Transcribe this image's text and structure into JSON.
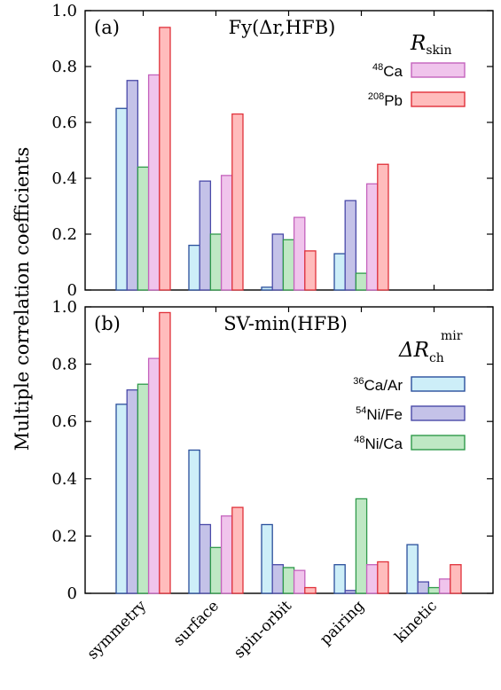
{
  "figure": {
    "ylabel": "Multiple correlation coefficients",
    "categories": [
      "symmetry",
      "surface",
      "spin-orbit",
      "pairing",
      "kinetic"
    ]
  },
  "colors": {
    "Ca48_fill": "#f0c4ec",
    "Ca48_stroke": "#c463bd",
    "Pb208_fill": "#ffbcbc",
    "Pb208_stroke": "#e0313a",
    "CaAr_fill": "#cdeef8",
    "CaAr_stroke": "#2a4f9c",
    "NiFe_fill": "#c4c2e8",
    "NiFe_stroke": "#4a4aa8",
    "NiCa_fill": "#bfe8c4",
    "NiCa_stroke": "#2f9a4a"
  },
  "chart_data": [
    {
      "type": "bar",
      "panel": "(a)",
      "title": "Fy(Δr,HFB)",
      "legend_title": {
        "symbol": "R",
        "subscript": "skin"
      },
      "categories": [
        "symmetry",
        "surface",
        "spin-orbit",
        "pairing",
        "kinetic"
      ],
      "ylim": [
        0,
        1.0
      ],
      "yticks": [
        "0",
        "0.2",
        "0.4",
        "0.6",
        "0.8",
        "1.0"
      ],
      "series": [
        {
          "name": "ΔR_ch^mir (36Ca/Ar)",
          "values": [
            0.65,
            0.16,
            0.01,
            0.13,
            null
          ],
          "fill": "#cdeef8",
          "stroke": "#2a4f9c"
        },
        {
          "name": "ΔR_ch^mir (54Ni/Fe)",
          "values": [
            0.75,
            0.39,
            0.2,
            0.32,
            null
          ],
          "fill": "#c4c2e8",
          "stroke": "#4a4aa8"
        },
        {
          "name": "ΔR_ch^mir (48Ni/Ca)",
          "values": [
            0.44,
            0.2,
            0.18,
            0.06,
            null
          ],
          "fill": "#bfe8c4",
          "stroke": "#2f9a4a"
        },
        {
          "name": "48Ca",
          "sup": "48",
          "base": "Ca",
          "values": [
            0.77,
            0.41,
            0.26,
            0.38,
            null
          ],
          "fill": "#f0c4ec",
          "stroke": "#c463bd"
        },
        {
          "name": "208Pb",
          "sup": "208",
          "base": "Pb",
          "values": [
            0.94,
            0.63,
            0.14,
            0.45,
            null
          ],
          "fill": "#ffbcbc",
          "stroke": "#e0313a"
        }
      ],
      "legend_entries": [
        {
          "sup": "48",
          "base": "Ca",
          "fill": "#f0c4ec",
          "stroke": "#c463bd"
        },
        {
          "sup": "208",
          "base": "Pb",
          "fill": "#ffbcbc",
          "stroke": "#e0313a"
        }
      ]
    },
    {
      "type": "bar",
      "panel": "(b)",
      "title": "SV-min(HFB)",
      "legend_title": {
        "symbol": "ΔR",
        "subscript": "ch",
        "superscript": "mir"
      },
      "categories": [
        "symmetry",
        "surface",
        "spin-orbit",
        "pairing",
        "kinetic"
      ],
      "ylim": [
        0,
        1.0
      ],
      "yticks": [
        "0",
        "0.2",
        "0.4",
        "0.6",
        "0.8",
        "1.0"
      ],
      "series": [
        {
          "name": "36Ca/Ar",
          "sup": "36",
          "base": "Ca/Ar",
          "values": [
            0.66,
            0.5,
            0.24,
            0.1,
            0.17
          ],
          "fill": "#cdeef8",
          "stroke": "#2a4f9c"
        },
        {
          "name": "54Ni/Fe",
          "sup": "54",
          "base": "Ni/Fe",
          "values": [
            0.71,
            0.24,
            0.1,
            0.01,
            0.04
          ],
          "fill": "#c4c2e8",
          "stroke": "#4a4aa8"
        },
        {
          "name": "48Ni/Ca",
          "sup": "48",
          "base": "Ni/Ca",
          "values": [
            0.73,
            0.16,
            0.09,
            0.33,
            0.02
          ],
          "fill": "#bfe8c4",
          "stroke": "#2f9a4a"
        },
        {
          "name": "48Ca",
          "values": [
            0.82,
            0.27,
            0.08,
            0.1,
            0.05
          ],
          "fill": "#f0c4ec",
          "stroke": "#c463bd"
        },
        {
          "name": "208Pb",
          "values": [
            0.98,
            0.3,
            0.02,
            0.11,
            0.1
          ],
          "fill": "#ffbcbc",
          "stroke": "#e0313a"
        }
      ],
      "legend_entries": [
        {
          "sup": "36",
          "base": "Ca/Ar",
          "fill": "#cdeef8",
          "stroke": "#2a4f9c"
        },
        {
          "sup": "54",
          "base": "Ni/Fe",
          "fill": "#c4c2e8",
          "stroke": "#4a4aa8"
        },
        {
          "sup": "48",
          "base": "Ni/Ca",
          "fill": "#bfe8c4",
          "stroke": "#2f9a4a"
        }
      ]
    }
  ]
}
